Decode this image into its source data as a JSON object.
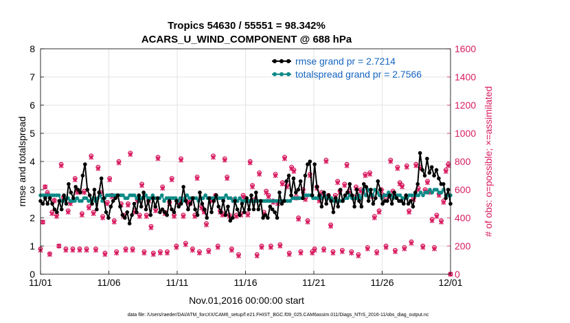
{
  "chart_data": {
    "type": "line",
    "title_line1": "Tropics 54630 / 55551 = 98.342%",
    "title_line2": "ACARS_U_WIND_COMPONENT @ 688 hPa",
    "xlabel": "Nov.01,2016 00:00:00 start",
    "ylabel_left": "rmse and totalspread",
    "ylabel_right": "# of obs: o=possible; ×=assimilated",
    "footnote": "data file: /Users/raeder/DAI/ATM_forcXX/CAM6_setup/f.e21.FHIST_BGC.f09_025.CAM6assim.011/Diags_NTrS_2016-11/obs_diag_output.nc",
    "xlim": [
      0,
      30
    ],
    "ylim_left": [
      0,
      8
    ],
    "ylim_right": [
      0,
      1600
    ],
    "x_ticks": [
      0,
      5,
      10,
      15,
      20,
      25,
      30
    ],
    "x_tick_labels": [
      "11/01",
      "11/06",
      "11/11",
      "11/16",
      "11/21",
      "11/26",
      "12/01"
    ],
    "y_left_ticks": [
      "0",
      "1",
      "2",
      "3",
      "4",
      "5",
      "6",
      "7",
      "8"
    ],
    "y_right_ticks": [
      "0",
      "200",
      "400",
      "600",
      "800",
      "1000",
      "1200",
      "1400",
      "1600"
    ],
    "grid": true,
    "legend_position": "top-right",
    "colors": {
      "rmse": "#000000",
      "spread": "#0e8a87",
      "obs": "#d81b60"
    },
    "series": [
      {
        "name": "rmse grand pr = 2.7214",
        "axis": "left",
        "marker": "circle",
        "values": [
          2.6,
          2.5,
          2.7,
          2.5,
          2.7,
          2.5,
          2.3,
          2.2,
          2.6,
          2.3,
          2.8,
          2.5,
          3.2,
          2.9,
          2.7,
          3.1,
          3.0,
          2.9,
          3.5,
          3.9,
          3.0,
          2.8,
          2.5,
          3.0,
          2.3,
          2.9,
          3.4,
          2.7,
          2.2,
          2.0,
          2.4,
          2.6,
          2.7,
          2.8,
          2.4,
          2.1,
          2.0,
          2.2,
          1.8,
          2.1,
          2.5,
          2.2,
          2.8,
          2.4,
          2.9,
          2.3,
          2.6,
          2.1,
          2.7,
          2.4,
          2.7,
          2.2,
          2.3,
          2.2,
          2.1,
          2.6,
          2.3,
          2.2,
          2.6,
          2.4,
          2.5,
          3.1,
          2.6,
          2.3,
          2.5,
          2.7,
          2.3,
          2.1,
          2.9,
          2.5,
          2.3,
          2.0,
          2.7,
          2.2,
          2.6,
          2.8,
          2.4,
          2.2,
          2.6,
          2.1,
          2.4,
          1.9,
          2.0,
          2.6,
          2.3,
          2.1,
          2.5,
          2.2,
          2.7,
          2.3,
          2.8,
          2.3,
          2.9,
          2.3,
          2.6,
          2.0,
          2.1,
          2.0,
          2.4,
          2.3,
          2.2,
          2.0,
          2.9,
          2.5,
          2.6,
          3.3,
          3.5,
          2.8,
          3.4,
          2.9,
          3.0,
          3.3,
          2.7,
          3.5,
          3.9,
          4.0,
          2.8,
          3.9,
          3.1,
          2.8,
          2.4,
          2.9,
          2.5,
          2.8,
          2.6,
          2.2,
          2.7,
          2.4,
          3.0,
          2.6,
          2.8,
          2.9,
          3.2,
          2.8,
          2.4,
          3.0,
          2.6,
          2.4,
          3.2,
          3.1,
          2.6,
          3.0,
          2.5,
          2.7,
          3.3,
          3.0,
          2.5,
          2.6,
          2.6,
          2.8,
          2.5,
          2.9,
          2.7,
          2.6,
          2.6,
          2.5,
          2.8,
          2.5,
          2.6,
          2.4,
          2.9,
          3.2,
          4.3,
          3.7,
          3.5,
          4.1,
          3.6,
          3.8,
          3.5,
          3.7,
          3.4,
          3.2,
          3.2,
          2.7,
          3.0,
          2.5
        ]
      },
      {
        "name": "totalspread grand pr = 2.7566",
        "axis": "left",
        "marker": "circle",
        "values": [
          2.8,
          2.8,
          2.8,
          2.8,
          2.8,
          2.8,
          2.8,
          2.8,
          2.8,
          2.6,
          2.6,
          2.7,
          2.7,
          2.6,
          2.6,
          2.6,
          2.7,
          2.6,
          2.6,
          2.7,
          2.7,
          2.6,
          2.6,
          2.7,
          2.6,
          2.7,
          2.8,
          2.6,
          2.7,
          2.8,
          2.8,
          2.8,
          2.8,
          2.8,
          2.8,
          2.8,
          2.8,
          2.7,
          2.7,
          2.8,
          2.8,
          2.8,
          2.7,
          2.6,
          2.7,
          2.7,
          2.8,
          2.7,
          2.7,
          2.8,
          2.7,
          2.7,
          2.7,
          2.8,
          2.6,
          2.7,
          2.7,
          2.7,
          2.7,
          2.7,
          2.6,
          2.7,
          2.6,
          2.7,
          2.8,
          2.7,
          2.7,
          2.7,
          2.7,
          2.6,
          2.7,
          2.7,
          2.8,
          2.7,
          2.7,
          2.7,
          2.7,
          2.7,
          2.7,
          2.7,
          2.7,
          2.8,
          2.7,
          2.7,
          2.6,
          2.7,
          2.6,
          2.7,
          2.6,
          2.6,
          2.6,
          2.6,
          2.6,
          2.6,
          2.6,
          2.6,
          2.6,
          2.6,
          2.6,
          2.6,
          2.6,
          2.6,
          2.6,
          2.6,
          2.6,
          2.6,
          2.6,
          2.6,
          2.6,
          2.6,
          2.7,
          2.7,
          2.7,
          2.7,
          2.7,
          2.8,
          2.8,
          2.8,
          2.8,
          2.7,
          2.7,
          2.7,
          2.8,
          2.7,
          2.8,
          2.7,
          2.7,
          2.7,
          2.6,
          2.6,
          2.6,
          2.6,
          2.6,
          2.7,
          2.7,
          2.8,
          2.7,
          2.7,
          2.7,
          2.8,
          2.7,
          3.0,
          2.8,
          3.0,
          2.8,
          2.8,
          3.0,
          2.9,
          2.8,
          2.7,
          2.8,
          2.8,
          2.9,
          2.8,
          2.7,
          2.8,
          2.8,
          2.8,
          2.7,
          2.7,
          2.7,
          2.8,
          2.8,
          2.8,
          2.8,
          2.8,
          2.9,
          2.8,
          2.9,
          2.9,
          3.0,
          2.9,
          3.0,
          3.0,
          2.9,
          2.9,
          3.0,
          2.8,
          2.8,
          2.8
        ]
      },
      {
        "name": "possible",
        "axis": "right",
        "marker": "o",
        "values": [
          180,
          370,
          620,
          580,
          145,
          440,
          525,
          420,
          200,
          780,
          545,
          180,
          450,
          510,
          180,
          680,
          590,
          180,
          430,
          590,
          180,
          480,
          840,
          440,
          180,
          760,
          580,
          410,
          150,
          510,
          680,
          560,
          380,
          160,
          800,
          500,
          420,
          180,
          500,
          860,
          180,
          450,
          530,
          420,
          640,
          160,
          420,
          530,
          340,
          150,
          460,
          830,
          160,
          620,
          440,
          160,
          510,
          680,
          420,
          200,
          520,
          820,
          420,
          220,
          520,
          510,
          180,
          420,
          690,
          160,
          480,
          450,
          360,
          170,
          530,
          840,
          560,
          200,
          450,
          430,
          820,
          690,
          420,
          180,
          530,
          420,
          140,
          430,
          560,
          540,
          430,
          800,
          630,
          530,
          140,
          720,
          200,
          440,
          590,
          560,
          200,
          520,
          710,
          510,
          210,
          650,
          830,
          630,
          150,
          760,
          740,
          550,
          400,
          160,
          600,
          540,
          380,
          710,
          160,
          180,
          620,
          530,
          580,
          180,
          810,
          560,
          350,
          160,
          560,
          660,
          590,
          170,
          640,
          780,
          590,
          160,
          550,
          620,
          140,
          600,
          590,
          710,
          190,
          720,
          560,
          410,
          160,
          450,
          600,
          560,
          200,
          560,
          810,
          590,
          170,
          760,
          650,
          630,
          190,
          770,
          450,
          230,
          540,
          780,
          610,
          760,
          200,
          600,
          660,
          590,
          390,
          190,
          420,
          570,
          380,
          520,
          740,
          780,
          0
        ]
      },
      {
        "name": "assimilated",
        "axis": "right",
        "marker": "x",
        "values": [
          170,
          370,
          620,
          570,
          140,
          430,
          520,
          410,
          200,
          770,
          540,
          170,
          440,
          500,
          170,
          670,
          580,
          170,
          420,
          580,
          170,
          470,
          830,
          430,
          170,
          750,
          570,
          400,
          140,
          500,
          670,
          550,
          370,
          150,
          790,
          490,
          410,
          170,
          490,
          850,
          170,
          440,
          520,
          410,
          630,
          150,
          410,
          520,
          330,
          140,
          450,
          820,
          150,
          610,
          430,
          150,
          500,
          670,
          410,
          190,
          510,
          810,
          410,
          210,
          510,
          500,
          170,
          410,
          680,
          150,
          470,
          440,
          350,
          160,
          520,
          830,
          550,
          190,
          440,
          420,
          810,
          680,
          410,
          170,
          520,
          410,
          130,
          420,
          550,
          530,
          420,
          790,
          620,
          520,
          130,
          710,
          190,
          430,
          580,
          550,
          190,
          510,
          700,
          500,
          200,
          640,
          820,
          620,
          140,
          750,
          730,
          540,
          390,
          150,
          590,
          530,
          370,
          700,
          150,
          170,
          610,
          520,
          570,
          170,
          800,
          550,
          340,
          150,
          550,
          650,
          580,
          160,
          630,
          770,
          580,
          150,
          540,
          610,
          130,
          590,
          580,
          700,
          180,
          710,
          550,
          400,
          150,
          440,
          590,
          550,
          190,
          550,
          800,
          580,
          160,
          750,
          640,
          620,
          180,
          760,
          440,
          220,
          530,
          770,
          600,
          750,
          190,
          590,
          650,
          580,
          380,
          180,
          410,
          560,
          370,
          510,
          730,
          770,
          0
        ]
      }
    ]
  }
}
